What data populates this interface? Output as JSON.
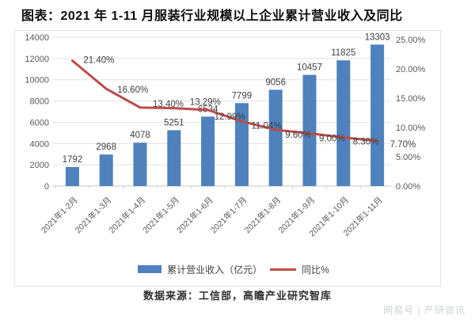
{
  "title": "图表：2021 年 1-11 月服装行业规模以上企业累计营业收入及同比",
  "legend": {
    "bar_label": "累计营业收入（亿元）",
    "line_label": "同比%"
  },
  "source": "数据来源：工信部，高瞻产业研究智库",
  "watermark": "网易号 | 产研资讯",
  "colors": {
    "bar": "#4f81bd",
    "line": "#be4b48",
    "grid": "#e0e0e0",
    "axis_line": "#c6c6c6",
    "axis_text": "#595959",
    "value_text": "#3f3f3f",
    "frame": "#e2e2e2",
    "watermark_text": "#cdd1d6"
  },
  "chart_data": {
    "type": "combo",
    "title": "图表：2021 年 1-11 月服装行业规模以上企业累计营业收入及同比",
    "categories": [
      "2021年1-2月",
      "2021年1-3月",
      "2021年1-4月",
      "2021年1-5月",
      "2021年1-6月",
      "2021年1-7月",
      "2021年1-8月",
      "2021年1-9月",
      "2021年1-10月",
      "2021年1-11月"
    ],
    "series": [
      {
        "name": "累计营业收入（亿元）",
        "type": "bar",
        "axis": "left",
        "values": [
          1792,
          2968,
          4078,
          5251,
          6534,
          7799,
          9056,
          10457,
          11825,
          13303
        ],
        "labels": [
          "1792",
          "2968",
          "4078",
          "5251",
          "6534",
          "7799",
          "9056",
          "10457",
          "11825",
          "13303"
        ]
      },
      {
        "name": "同比%",
        "type": "line",
        "axis": "right",
        "values": [
          21.4,
          16.6,
          13.4,
          13.29,
          12.99,
          11.04,
          9.6,
          9.0,
          8.3,
          7.7
        ],
        "labels": [
          "21.40%",
          "16.60%",
          "13.40%",
          "13.29%",
          "12.99%",
          "11.04%",
          "9.60%",
          "9.00%",
          "8.30%",
          "7.70%"
        ]
      }
    ],
    "left_axis": {
      "min": 0,
      "max": 14000,
      "step": 2000,
      "tick_labels": [
        "0",
        "2000",
        "4000",
        "6000",
        "8000",
        "10000",
        "12000",
        "14000"
      ]
    },
    "right_axis": {
      "min": 0,
      "max": 25,
      "step": 5,
      "tick_labels": [
        "0.00%",
        "5.00%",
        "10.00%",
        "15.00%",
        "20.00%",
        "25.00%"
      ]
    },
    "grid": true,
    "legend_position": "bottom"
  }
}
